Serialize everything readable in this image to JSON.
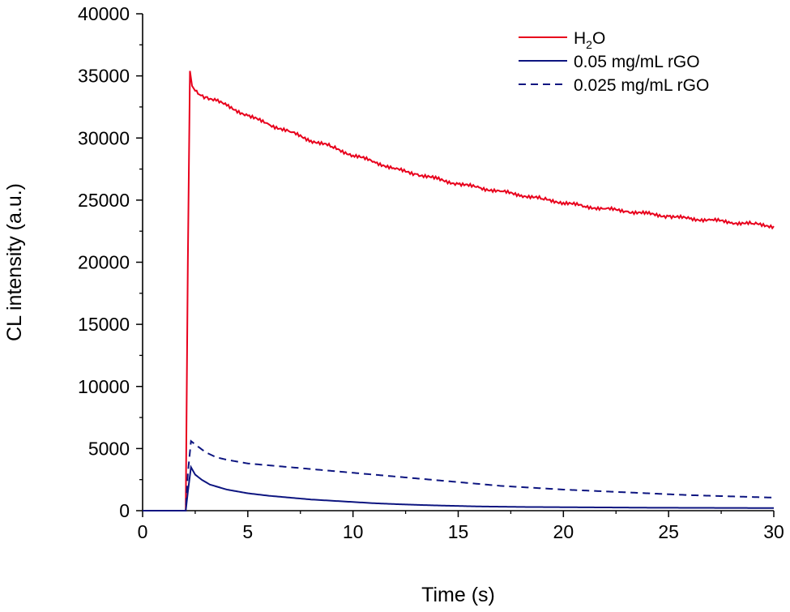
{
  "chart_data": {
    "type": "line",
    "title": "",
    "xlabel": "Time (s)",
    "ylabel": "CL intensity (a.u.)",
    "xlim": [
      0,
      30
    ],
    "ylim": [
      0,
      40000
    ],
    "xticks": [
      0,
      5,
      10,
      15,
      20,
      25,
      30
    ],
    "xtick_labels": [
      "0",
      "5",
      "10",
      "15",
      "20",
      "25",
      "30"
    ],
    "yticks": [
      0,
      5000,
      10000,
      15000,
      20000,
      25000,
      30000,
      35000,
      40000
    ],
    "ytick_labels": [
      "0",
      "5000",
      "10000",
      "15000",
      "20000",
      "25000",
      "30000",
      "35000",
      "40000"
    ],
    "grid": false,
    "legend_position": "top-right",
    "series": [
      {
        "name": "H2O",
        "legend_main": "H",
        "legend_sub": "2",
        "legend_tail": "O",
        "color": "#e8001c",
        "style": "solid",
        "x": [
          0,
          2.05,
          2.15,
          2.25,
          2.35,
          2.5,
          2.7,
          3,
          3.5,
          4,
          5,
          6,
          7,
          8,
          9,
          10,
          11,
          12,
          13,
          14,
          15,
          16,
          17,
          18,
          19,
          20,
          21,
          22,
          23,
          24,
          25,
          26,
          27,
          28,
          29,
          30
        ],
        "y": [
          0,
          0,
          20000,
          35400,
          34200,
          33800,
          33500,
          33300,
          33000,
          32600,
          31800,
          31100,
          30500,
          29800,
          29300,
          28600,
          28100,
          27500,
          27100,
          26700,
          26300,
          26000,
          25700,
          25400,
          25100,
          24800,
          24500,
          24300,
          24100,
          23900,
          23700,
          23500,
          23400,
          23200,
          23100,
          22900
        ]
      },
      {
        "name": "0.05 mg/mL rGO",
        "color": "#0d1580",
        "style": "solid",
        "x": [
          0,
          2.05,
          2.15,
          2.3,
          2.5,
          2.8,
          3.2,
          3.6,
          4,
          5,
          6,
          7,
          8,
          9,
          10,
          11,
          12,
          13,
          14,
          15,
          16,
          18,
          20,
          22,
          24,
          26,
          28,
          30
        ],
        "y": [
          0,
          0,
          1500,
          3500,
          2900,
          2500,
          2100,
          1900,
          1700,
          1400,
          1200,
          1050,
          900,
          800,
          700,
          600,
          530,
          470,
          420,
          380,
          340,
          300,
          280,
          260,
          240,
          230,
          220,
          210
        ]
      },
      {
        "name": "0.025 mg/mL rGO",
        "color": "#0d1580",
        "style": "dashed",
        "x": [
          0,
          2.05,
          2.15,
          2.3,
          2.6,
          3,
          3.5,
          4,
          5,
          6,
          7,
          8,
          9,
          10,
          11,
          12,
          13,
          14,
          15,
          16,
          17,
          18,
          19,
          20,
          22,
          24,
          26,
          28,
          30
        ],
        "y": [
          0,
          0,
          3000,
          5600,
          5200,
          4700,
          4300,
          4100,
          3800,
          3650,
          3500,
          3350,
          3200,
          3050,
          2900,
          2750,
          2600,
          2450,
          2300,
          2150,
          2000,
          1900,
          1800,
          1700,
          1550,
          1400,
          1250,
          1150,
          1050
        ]
      }
    ]
  }
}
